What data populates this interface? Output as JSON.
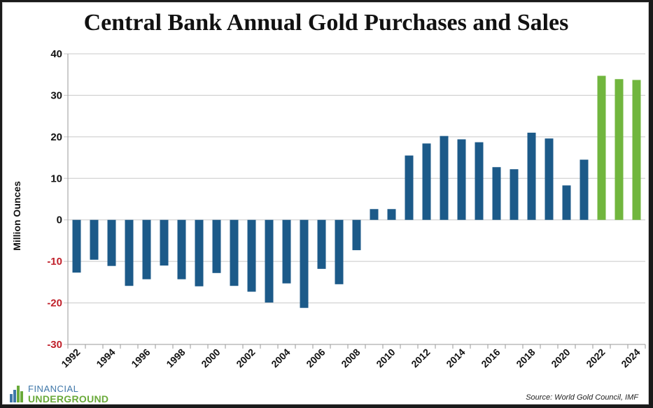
{
  "logo": {
    "line1": "FINANCIAL",
    "line2": "UNDERGROUND"
  },
  "source": "Source: World Gold Council, IMF",
  "colors": {
    "sale": "#1c5a89",
    "purchase": "#1c5a89",
    "recent": "#71b63e",
    "negative_tick": "#c0202a",
    "positive_tick": "#111111"
  },
  "chart_data": {
    "type": "bar",
    "title": "Central Bank Annual Gold Purchases and Sales",
    "ylabel": "Million Ounces",
    "xlabel": "",
    "ylim": [
      -30,
      40
    ],
    "yticks": [
      40,
      30,
      20,
      10,
      0,
      -10,
      -20,
      -30
    ],
    "xtick_labels": [
      "1992",
      "1994",
      "1996",
      "1998",
      "2000",
      "2002",
      "2004",
      "2006",
      "2008",
      "2010",
      "2012",
      "2014",
      "2016",
      "2018",
      "2020",
      "2022",
      "2024"
    ],
    "categories": [
      "1992",
      "1993",
      "1994",
      "1995",
      "1996",
      "1997",
      "1998",
      "1999",
      "2000",
      "2001",
      "2002",
      "2003",
      "2004",
      "2005",
      "2006",
      "2007",
      "2008",
      "2009",
      "2010",
      "2011",
      "2012",
      "2013",
      "2014",
      "2015",
      "2016",
      "2017",
      "2018",
      "2019",
      "2020",
      "2021",
      "2022",
      "2023",
      "2024"
    ],
    "values": [
      -12.7,
      -9.6,
      -11.1,
      -15.9,
      -14.3,
      -11.0,
      -14.3,
      -16.0,
      -12.8,
      -15.9,
      -17.3,
      -19.9,
      -15.3,
      -21.2,
      -11.8,
      -15.5,
      -7.3,
      2.6,
      2.6,
      15.5,
      18.4,
      20.2,
      19.4,
      18.7,
      12.7,
      12.2,
      21.0,
      19.6,
      8.3,
      14.5,
      34.7,
      33.9,
      33.7
    ],
    "highlight_from_index": 30,
    "grid": true,
    "legend": "none"
  }
}
